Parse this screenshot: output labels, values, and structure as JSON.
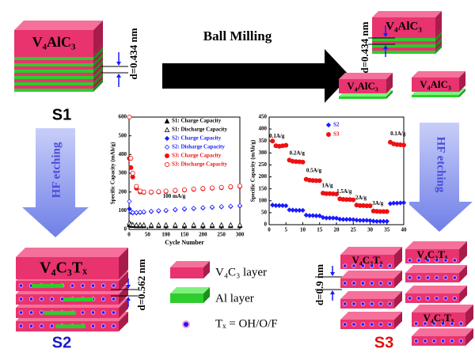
{
  "diagram": {
    "s1": {
      "block": "V₄AlC₃",
      "spacing": "d=0.434 nm",
      "label": "S1"
    },
    "milling": {
      "label": "Ball Milling",
      "blocks": [
        "V₄AlC₃",
        "V₄AlC₃",
        "V₄AlC₃"
      ],
      "spacing": "d=0.434 nm"
    },
    "etching": [
      "HF etching",
      "HF etching"
    ],
    "s2": {
      "block": "V₄C₃Tₓ",
      "spacing": "d=0.562 nm",
      "label": "S2"
    },
    "legend": [
      "V₄C₃ layer",
      "Al layer",
      "Tₓ = OH/O/F"
    ],
    "s3": {
      "blocks": [
        "V₄C₃Tₓ",
        "V₄C₃Tₓ",
        "V₄C₃Tₓ"
      ],
      "spacing": "d=0.9 nm",
      "label": "S3"
    }
  },
  "chart_data": [
    {
      "type": "scatter",
      "ylabel": "Specific Capacity (mAh/g)",
      "xlabel": "Cycle Number",
      "xlim": [
        0,
        300
      ],
      "xticks": [
        0,
        50,
        100,
        150,
        200,
        250,
        300
      ],
      "ylim": [
        0,
        600
      ],
      "yticks": [
        0,
        100,
        200,
        300,
        400,
        500,
        600
      ],
      "legend": "upper right",
      "annotations": [
        "100 mA/g"
      ],
      "x": [
        1,
        5,
        10,
        20,
        30,
        40,
        60,
        80,
        100,
        125,
        150,
        175,
        200,
        225,
        250,
        275,
        300
      ],
      "series": [
        {
          "name": "S1: Charge Capacity",
          "color": "#000000",
          "marker": "triangle",
          "filled": true,
          "values": [
            25,
            22,
            21,
            20,
            20,
            20,
            20,
            20,
            20,
            20,
            20,
            20,
            20,
            20,
            20,
            20,
            20
          ]
        },
        {
          "name": "S1: Discharge Capacity",
          "color": "#000000",
          "marker": "triangle",
          "filled": false,
          "values": [
            35,
            28,
            26,
            25,
            25,
            25,
            25,
            25,
            25,
            25,
            25,
            25,
            25,
            25,
            25,
            25,
            25
          ]
        },
        {
          "name": "S2: Charge Capacity",
          "color": "#1a1aff",
          "marker": "diamond",
          "filled": true,
          "values": [
            110,
            92,
            88,
            88,
            90,
            92,
            95,
            98,
            100,
            104,
            108,
            111,
            114,
            117,
            120,
            122,
            125
          ]
        },
        {
          "name": "S2: Disharge Capacity",
          "color": "#1a1aff",
          "marker": "diamond",
          "filled": false,
          "values": [
            150,
            95,
            90,
            90,
            92,
            94,
            97,
            100,
            102,
            106,
            110,
            113,
            116,
            119,
            122,
            124,
            127
          ]
        },
        {
          "name": "S3: Charge Capacity",
          "color": "#ee1111",
          "marker": "circle",
          "filled": true,
          "values": [
            380,
            330,
            280,
            220,
            200,
            198,
            198,
            200,
            203,
            207,
            210,
            214,
            217,
            220,
            223,
            226,
            230
          ]
        },
        {
          "name": "S3: Discharge Capacity",
          "color": "#ee1111",
          "marker": "circle",
          "filled": false,
          "values": [
            600,
            380,
            300,
            230,
            205,
            200,
            200,
            202,
            205,
            209,
            212,
            216,
            219,
            222,
            225,
            228,
            232
          ]
        }
      ]
    },
    {
      "type": "scatter",
      "ylabel": "Specific Capacity (mAh/g)",
      "xlim": [
        0,
        40
      ],
      "xticks": [
        0,
        5,
        10,
        15,
        20,
        25,
        30,
        35,
        40
      ],
      "ylim": [
        0,
        450
      ],
      "yticks": [
        0,
        50,
        100,
        150,
        200,
        250,
        300,
        350,
        400,
        450
      ],
      "legend": "upper center",
      "annotations": [
        "0.1A/g",
        "0.2A/g",
        "0.5A/g",
        "1A/g",
        "1.5A/g",
        "2A/g",
        "3A/g",
        "0.1A/g"
      ],
      "x": [
        1,
        2,
        3,
        4,
        5,
        6,
        7,
        8,
        9,
        10,
        11,
        12,
        13,
        14,
        15,
        16,
        17,
        18,
        19,
        20,
        21,
        22,
        23,
        24,
        25,
        26,
        27,
        28,
        29,
        30,
        31,
        32,
        33,
        34,
        35,
        36,
        37,
        38,
        39,
        40
      ],
      "series": [
        {
          "name": "S2",
          "color": "#1a1aff",
          "marker": "diamond",
          "filled": true,
          "values": [
            82,
            80,
            80,
            80,
            79,
            62,
            61,
            60,
            60,
            60,
            40,
            38,
            38,
            37,
            37,
            30,
            28,
            28,
            28,
            27,
            23,
            22,
            22,
            22,
            21,
            19,
            18,
            18,
            18,
            17,
            15,
            14,
            14,
            14,
            14,
            88,
            90,
            90,
            91,
            92
          ]
        },
        {
          "name": "S3",
          "color": "#ee1111",
          "marker": "circle",
          "filled": true,
          "values": [
            350,
            330,
            328,
            330,
            332,
            270,
            265,
            264,
            263,
            262,
            190,
            186,
            185,
            184,
            184,
            132,
            130,
            130,
            129,
            128,
            108,
            106,
            105,
            105,
            104,
            82,
            80,
            80,
            79,
            79,
            57,
            56,
            55,
            55,
            55,
            345,
            338,
            335,
            334,
            333
          ]
        }
      ]
    }
  ]
}
